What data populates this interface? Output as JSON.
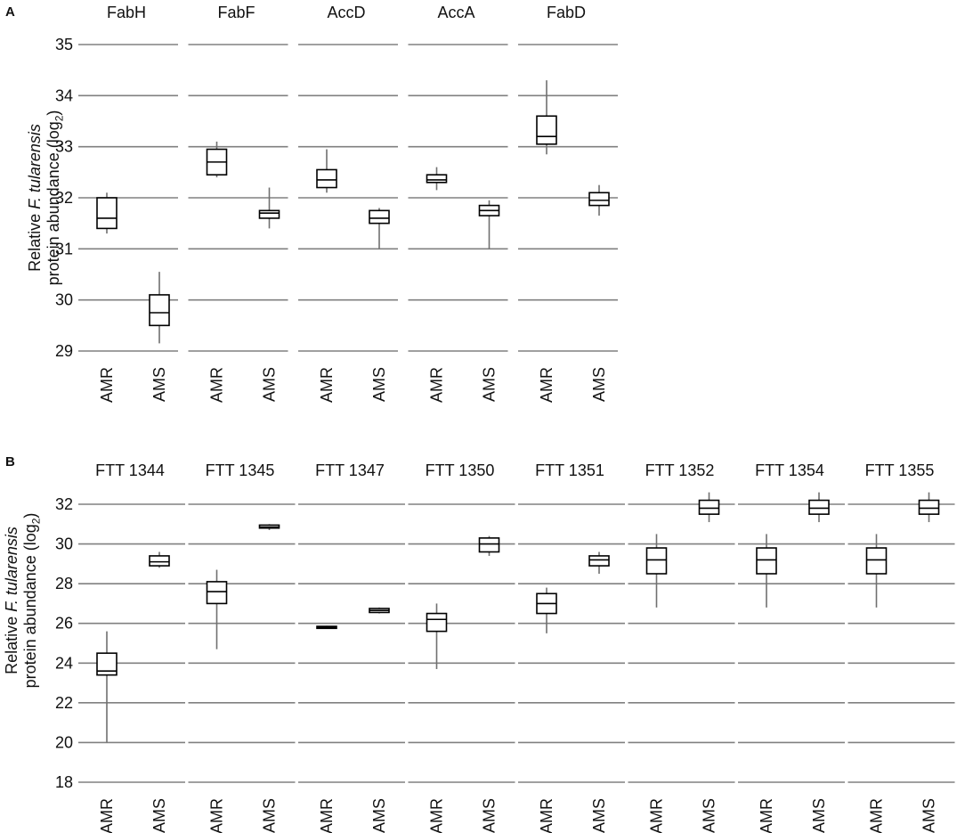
{
  "chart_data": [
    {
      "panel": "A",
      "type": "box",
      "ylabel": "Relative F. tularensis protein abundance (log2)",
      "ylim": [
        29,
        35
      ],
      "yticks": [
        "29",
        "30",
        "31",
        "32",
        "33",
        "34",
        "35"
      ],
      "categories": [
        "AMR",
        "AMS"
      ],
      "grid": true,
      "subplots": [
        {
          "title": "FabH",
          "boxes": [
            {
              "category": "AMR",
              "min": 31.3,
              "q1": 31.4,
              "median": 31.6,
              "q3": 32.0,
              "max": 32.1
            },
            {
              "category": "AMS",
              "min": 29.15,
              "q1": 29.5,
              "median": 29.75,
              "q3": 30.1,
              "max": 30.55
            }
          ]
        },
        {
          "title": "FabF",
          "boxes": [
            {
              "category": "AMR",
              "min": 32.4,
              "q1": 32.45,
              "median": 32.7,
              "q3": 32.95,
              "max": 33.1
            },
            {
              "category": "AMS",
              "min": 31.4,
              "q1": 31.6,
              "median": 31.7,
              "q3": 31.75,
              "max": 32.2
            }
          ]
        },
        {
          "title": "AccD",
          "boxes": [
            {
              "category": "AMR",
              "min": 32.1,
              "q1": 32.2,
              "median": 32.35,
              "q3": 32.55,
              "max": 32.95
            },
            {
              "category": "AMS",
              "min": 31.0,
              "q1": 31.5,
              "median": 31.6,
              "q3": 31.75,
              "max": 31.8
            }
          ]
        },
        {
          "title": "AccA",
          "boxes": [
            {
              "category": "AMR",
              "min": 32.15,
              "q1": 32.3,
              "median": 32.35,
              "q3": 32.45,
              "max": 32.6
            },
            {
              "category": "AMS",
              "min": 31.0,
              "q1": 31.65,
              "median": 31.75,
              "q3": 31.85,
              "max": 31.95
            }
          ]
        },
        {
          "title": "FabD",
          "boxes": [
            {
              "category": "AMR",
              "min": 32.85,
              "q1": 33.05,
              "median": 33.2,
              "q3": 33.6,
              "max": 34.3
            },
            {
              "category": "AMS",
              "min": 31.65,
              "q1": 31.85,
              "median": 31.95,
              "q3": 32.1,
              "max": 32.25
            }
          ]
        }
      ]
    },
    {
      "panel": "B",
      "type": "box",
      "ylabel": "Relative F. tularensis protein abundance (log2)",
      "ylim": [
        18,
        32
      ],
      "yticks": [
        "18",
        "20",
        "22",
        "24",
        "26",
        "28",
        "30",
        "32"
      ],
      "categories": [
        "AMR",
        "AMS"
      ],
      "grid": true,
      "subplots": [
        {
          "title": "FTT  1344",
          "boxes": [
            {
              "category": "AMR",
              "min": 20.0,
              "q1": 23.4,
              "median": 23.6,
              "q3": 24.5,
              "max": 25.6
            },
            {
              "category": "AMS",
              "min": 28.8,
              "q1": 28.9,
              "median": 29.1,
              "q3": 29.4,
              "max": 29.6
            }
          ]
        },
        {
          "title": "FTT  1345",
          "boxes": [
            {
              "category": "AMR",
              "min": 24.7,
              "q1": 27.0,
              "median": 27.6,
              "q3": 28.1,
              "max": 28.7
            },
            {
              "category": "AMS",
              "min": 30.7,
              "q1": 30.8,
              "median": 30.85,
              "q3": 30.95,
              "max": 31.0
            }
          ]
        },
        {
          "title": "FTT  1347",
          "boxes": [
            {
              "category": "AMR",
              "min": 25.72,
              "q1": 25.75,
              "median": 25.8,
              "q3": 25.85,
              "max": 25.88
            },
            {
              "category": "AMS",
              "min": 26.5,
              "q1": 26.55,
              "median": 26.65,
              "q3": 26.75,
              "max": 26.8
            }
          ]
        },
        {
          "title": "FTT  1350",
          "boxes": [
            {
              "category": "AMR",
              "min": 23.7,
              "q1": 25.6,
              "median": 26.2,
              "q3": 26.5,
              "max": 27.0
            },
            {
              "category": "AMS",
              "min": 29.4,
              "q1": 29.6,
              "median": 30.0,
              "q3": 30.3,
              "max": 30.4
            }
          ]
        },
        {
          "title": "FTT  1351",
          "boxes": [
            {
              "category": "AMR",
              "min": 25.5,
              "q1": 26.5,
              "median": 27.0,
              "q3": 27.5,
              "max": 27.8
            },
            {
              "category": "AMS",
              "min": 28.5,
              "q1": 28.9,
              "median": 29.2,
              "q3": 29.4,
              "max": 29.6
            }
          ]
        },
        {
          "title": "FTT  1352",
          "boxes": [
            {
              "category": "AMR",
              "min": 26.8,
              "q1": 28.5,
              "median": 29.2,
              "q3": 29.8,
              "max": 30.5
            },
            {
              "category": "AMS",
              "min": 31.1,
              "q1": 31.5,
              "median": 31.8,
              "q3": 32.2,
              "max": 32.6
            }
          ]
        },
        {
          "title": "FTT  1354",
          "boxes": [
            {
              "category": "AMR",
              "min": 26.8,
              "q1": 28.5,
              "median": 29.2,
              "q3": 29.8,
              "max": 30.5
            },
            {
              "category": "AMS",
              "min": 31.1,
              "q1": 31.5,
              "median": 31.8,
              "q3": 32.2,
              "max": 32.6
            }
          ]
        },
        {
          "title": "FTT  1355",
          "boxes": [
            {
              "category": "AMR",
              "min": 26.8,
              "q1": 28.5,
              "median": 29.2,
              "q3": 29.8,
              "max": 30.5
            },
            {
              "category": "AMS",
              "min": 31.1,
              "q1": 31.5,
              "median": 31.8,
              "q3": 32.2,
              "max": 32.6
            }
          ]
        }
      ]
    }
  ],
  "labels": {
    "panel_a": "A",
    "panel_b": "B",
    "ylabel_pre": "Relative ",
    "ylabel_species": "F. tularensis",
    "ylabel_line2": "protein abundance (log",
    "ylabel_sub": "2",
    "ylabel_close": ")"
  },
  "colors": {
    "grid": "#808080",
    "box": "#000000",
    "whisker": "#707070",
    "text": "#111111"
  }
}
